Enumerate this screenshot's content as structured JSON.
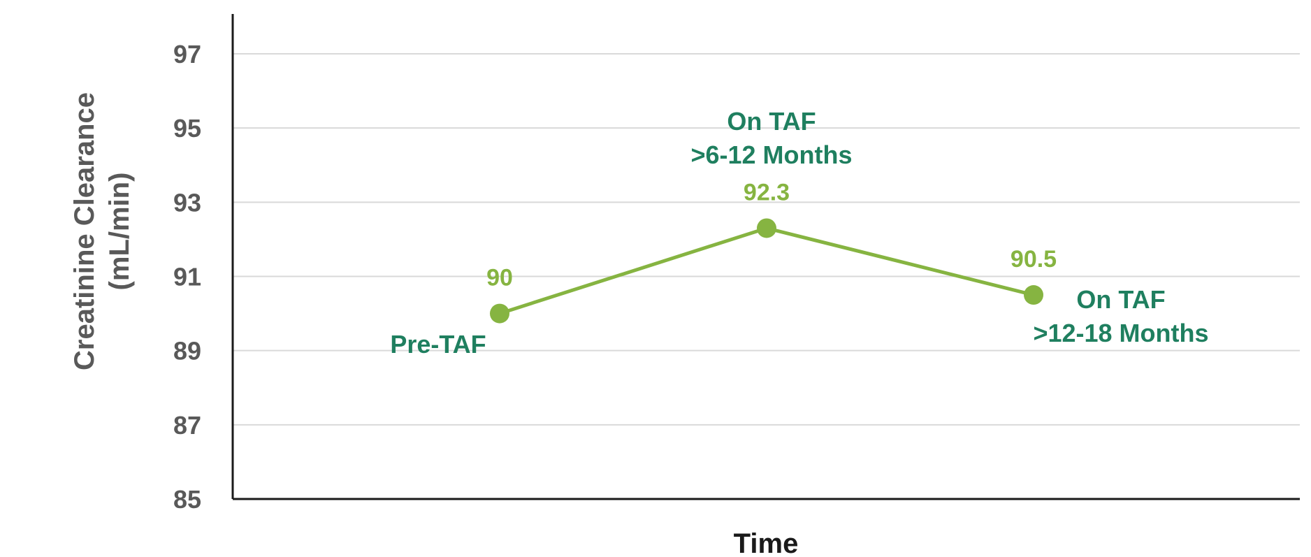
{
  "chart_data": {
    "type": "line",
    "xlabel": "Time",
    "ylabel_lines": [
      "Creatinine Clearance",
      "(mL/min)"
    ],
    "ylim": [
      85,
      97
    ],
    "yticks": [
      85,
      87,
      89,
      91,
      93,
      95,
      97
    ],
    "grid": true,
    "points": [
      {
        "value": 90,
        "value_label": "90",
        "label_lines": [
          "Pre-TAF"
        ]
      },
      {
        "value": 92.3,
        "value_label": "92.3",
        "label_lines": [
          "On TAF",
          ">6-12 Months"
        ]
      },
      {
        "value": 90.5,
        "value_label": "90.5",
        "label_lines": [
          "On TAF",
          ">12-18 Months"
        ]
      }
    ],
    "colors": {
      "line": "#86b441",
      "point_label": "#1f7f5f",
      "tick_label": "#595959",
      "grid": "#d9d9d9",
      "axis": "#1a1a1a"
    }
  }
}
